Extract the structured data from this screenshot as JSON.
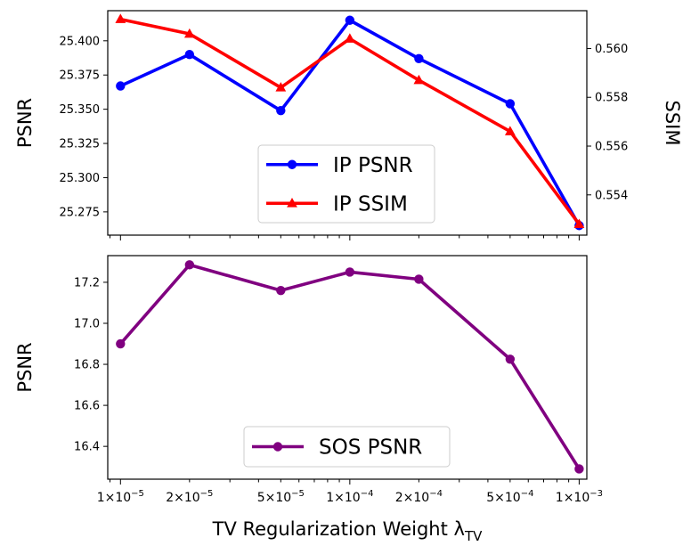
{
  "chart_data": [
    {
      "type": "line",
      "x": [
        1e-05,
        2e-05,
        5e-05,
        0.0001,
        0.0002,
        0.0005,
        0.001
      ],
      "xscale": "log",
      "xlim": [
        8.8e-06,
        0.00108
      ],
      "ylabel": "PSNR",
      "y2label": "SSIM",
      "ylim": [
        25.258,
        25.422
      ],
      "y2lim": [
        0.55235,
        0.56155
      ],
      "yticks": [
        25.275,
        25.3,
        25.325,
        25.35,
        25.375,
        25.4
      ],
      "ytick_labels": [
        "25.275",
        "25.300",
        "25.325",
        "25.350",
        "25.375",
        "25.400"
      ],
      "y2ticks": [
        0.554,
        0.556,
        0.558,
        0.56
      ],
      "y2tick_labels": [
        "0.554",
        "0.556",
        "0.558",
        "0.560"
      ],
      "legend": "lower-center",
      "grid": false,
      "series": [
        {
          "name": "IP PSNR",
          "axis": "left",
          "marker": "circle",
          "color": "#0000ff",
          "values": [
            25.367,
            25.39,
            25.349,
            25.415,
            25.387,
            25.354,
            25.265
          ]
        },
        {
          "name": "IP SSIM",
          "axis": "right",
          "marker": "triangle",
          "color": "#ff0000",
          "values": [
            0.5612,
            0.5606,
            0.5584,
            0.5604,
            0.5587,
            0.5566,
            0.5528
          ]
        }
      ]
    },
    {
      "type": "line",
      "x": [
        1e-05,
        2e-05,
        5e-05,
        0.0001,
        0.0002,
        0.0005,
        0.001
      ],
      "xscale": "log",
      "xlim": [
        8.8e-06,
        0.00108
      ],
      "xlabel": "TV Regularization Weight λ",
      "xlabel_subscript": "TV",
      "xticks": [
        1e-05,
        2e-05,
        5e-05,
        0.0001,
        0.0002,
        0.0005,
        0.001
      ],
      "xtick_labels": [
        {
          "base": "1×10",
          "exp": "−5"
        },
        {
          "base": "2×10",
          "exp": "−5"
        },
        {
          "base": "5×10",
          "exp": "−5"
        },
        {
          "base": "1×10",
          "exp": "−4"
        },
        {
          "base": "2×10",
          "exp": "−4"
        },
        {
          "base": "5×10",
          "exp": "−4"
        },
        {
          "base": "1×10",
          "exp": "−3"
        }
      ],
      "ylabel": "PSNR",
      "ylim": [
        16.24,
        17.33
      ],
      "yticks": [
        16.4,
        16.6,
        16.8,
        17.0,
        17.2
      ],
      "ytick_labels": [
        "16.4",
        "16.6",
        "16.8",
        "17.0",
        "17.2"
      ],
      "legend": "lower-center",
      "grid": false,
      "series": [
        {
          "name": "SOS PSNR",
          "axis": "left",
          "marker": "circle",
          "color": "#800080",
          "values": [
            16.9,
            17.285,
            17.16,
            17.25,
            17.215,
            16.825,
            16.29
          ]
        }
      ]
    }
  ]
}
